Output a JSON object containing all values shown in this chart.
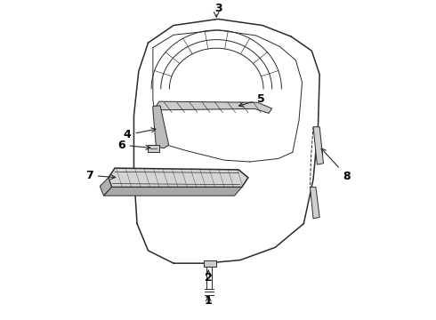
{
  "background_color": "#ffffff",
  "line_color": "#2a2a2a",
  "label_color": "#000000",
  "figsize": [
    4.9,
    3.6
  ],
  "dpi": 100
}
